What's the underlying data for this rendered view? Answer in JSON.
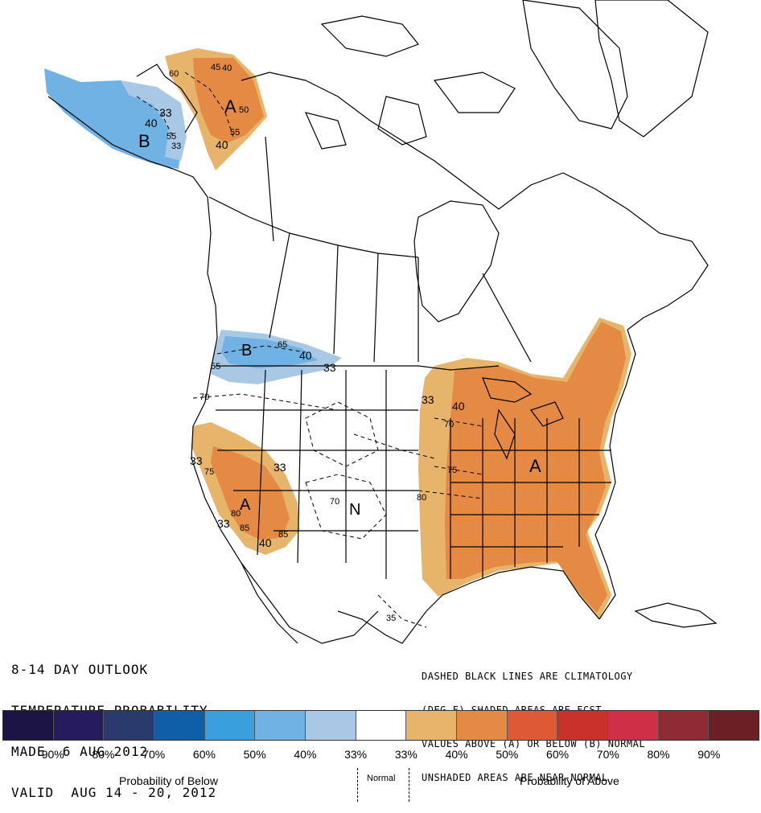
{
  "outlook": {
    "title_lines": [
      "8-14 DAY OUTLOOK",
      "TEMPERATURE PROBABILITY",
      "MADE  6 AUG 2012",
      "VALID  AUG 14 - 20, 2012"
    ]
  },
  "note": {
    "lines": [
      "DASHED BLACK LINES ARE CLIMATOLOGY",
      "(DEG F) SHADED AREAS ARE FCST",
      "VALUES ABOVE (A) OR BELOW (B) NORMAL",
      "UNSHADED AREAS ARE NEAR-NORMAL"
    ]
  },
  "map": {
    "categories": {
      "alaska_west": "B",
      "alaska_east": "A",
      "pacific_northwest": "B",
      "southwest": "A",
      "new_mexico": "N",
      "eastern_us": "A"
    },
    "probability_labels": {
      "ak_b_33": "33",
      "ak_b_40": "40",
      "ak_b_55": "55",
      "ak_b_33b": "33",
      "ak_a_60": "60",
      "ak_a_45": "45",
      "ak_a_40": "40",
      "ak_a_50": "50",
      "ak_a_55": "55",
      "ak_a_40b": "40",
      "pnw_65": "65",
      "pnw_40": "40",
      "pnw_33": "33",
      "pnw_55": "55",
      "sw_33a": "33",
      "sw_75": "75",
      "sw_33b": "33",
      "sw_80": "80",
      "sw_33c": "33",
      "sw_85a": "85",
      "sw_85b": "85",
      "sw_40": "40",
      "e_33": "33",
      "e_40": "40",
      "e_70": "70",
      "e_75": "75",
      "e_80": "80",
      "clim_70w": "70",
      "clim_70nm": "70",
      "clim_35": "35"
    }
  },
  "legend": {
    "colors": [
      "#1c1445",
      "#261b5c",
      "#2b3a6d",
      "#0f5ea8",
      "#39a0dd",
      "#6fb2e3",
      "#a8c8e6",
      "#ffffff",
      "#e6b46a",
      "#e48a44",
      "#dd5a34",
      "#c8322b",
      "#cf3048",
      "#8e2b35",
      "#6a2025"
    ],
    "percent_labels": [
      "90%",
      "80%",
      "70%",
      "60%",
      "50%",
      "40%",
      "33%",
      "33%",
      "40%",
      "50%",
      "60%",
      "70%",
      "80%",
      "90%"
    ],
    "below_caption": "Probability of Below",
    "normal_caption": "Normal",
    "above_caption": "Probability of Above"
  }
}
